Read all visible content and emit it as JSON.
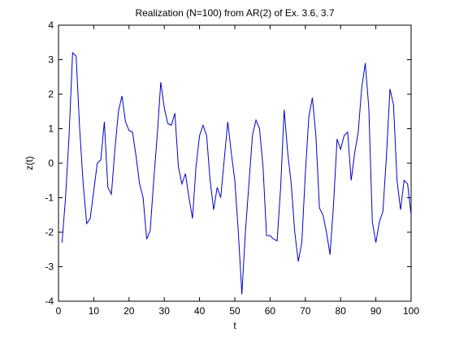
{
  "chart_data": {
    "type": "line",
    "title": "Realization (N=100) from AR(2) of Ex. 3.6, 3.7",
    "x_label": "t",
    "y_label": "z(t)",
    "x": [
      1,
      2,
      3,
      4,
      5,
      6,
      7,
      8,
      9,
      10,
      11,
      12,
      13,
      14,
      15,
      16,
      17,
      18,
      19,
      20,
      21,
      22,
      23,
      24,
      25,
      26,
      27,
      28,
      29,
      30,
      31,
      32,
      33,
      34,
      35,
      36,
      37,
      38,
      39,
      40,
      41,
      42,
      43,
      44,
      45,
      46,
      47,
      48,
      49,
      50,
      51,
      52,
      53,
      54,
      55,
      56,
      57,
      58,
      59,
      60,
      61,
      62,
      63,
      64,
      65,
      66,
      67,
      68,
      69,
      70,
      71,
      72,
      73,
      74,
      75,
      76,
      77,
      78,
      79,
      80,
      81,
      82,
      83,
      84,
      85,
      86,
      87,
      88,
      89,
      90,
      91,
      92,
      93,
      94,
      95,
      96,
      97,
      98,
      99,
      100
    ],
    "values": [
      -2.3,
      -1.0,
      0.8,
      3.2,
      3.1,
      1.0,
      -0.6,
      -1.75,
      -1.6,
      -0.8,
      0.0,
      0.1,
      1.2,
      -0.7,
      -0.9,
      0.4,
      1.5,
      1.95,
      1.2,
      0.95,
      0.9,
      0.2,
      -0.6,
      -1.0,
      -2.2,
      -1.95,
      -0.5,
      0.8,
      2.35,
      1.6,
      1.15,
      1.1,
      1.45,
      -0.1,
      -0.6,
      -0.3,
      -1.0,
      -1.6,
      -0.1,
      0.8,
      1.1,
      0.8,
      -0.5,
      -1.35,
      -0.7,
      -1.0,
      0.1,
      1.2,
      0.3,
      -0.5,
      -2.0,
      -3.8,
      -2.0,
      -0.6,
      0.8,
      1.25,
      1.0,
      -0.1,
      -2.1,
      -2.1,
      -2.2,
      -2.25,
      -0.7,
      1.55,
      0.3,
      -0.6,
      -2.0,
      -2.85,
      -2.3,
      -0.3,
      1.35,
      1.9,
      0.8,
      -1.3,
      -1.5,
      -2.0,
      -2.65,
      -1.2,
      0.7,
      0.4,
      0.8,
      0.9,
      -0.5,
      0.3,
      0.9,
      2.2,
      2.9,
      1.6,
      -1.7,
      -2.3,
      -1.7,
      -1.4,
      0.2,
      2.15,
      1.7,
      -0.5,
      -1.35,
      -0.5,
      -0.6,
      -1.5
    ],
    "color": "#0000cc",
    "xlim": [
      0,
      100
    ],
    "xticks": [
      0,
      10,
      20,
      30,
      40,
      50,
      60,
      70,
      80,
      90,
      100
    ],
    "ylim": [
      -4,
      4
    ],
    "yticks": [
      -4,
      -3,
      -2,
      -1,
      0,
      1,
      2,
      3,
      4
    ],
    "grid": false
  }
}
